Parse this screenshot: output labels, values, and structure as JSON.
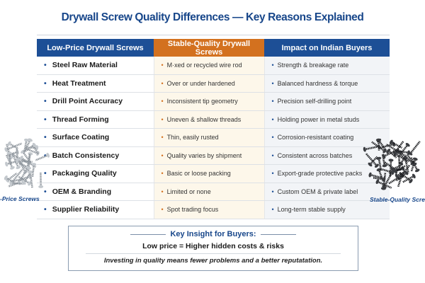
{
  "title": "Drywall Screw Quality Differences — Key Reasons Explained",
  "table": {
    "headers": [
      "Low-Price Drywall Screws",
      "Stable-Quality Drywall Screws",
      "Impact on Indian Buyers"
    ],
    "rows": [
      [
        "Steel Raw Material",
        "M·xed or recycled wire rod",
        "Strength & breakage rate"
      ],
      [
        "Heat Treatment",
        "Over or under hardened",
        "Balanced hardness & torque"
      ],
      [
        "Drill Point Accuracy",
        "Inconsistent tip geometry",
        "Precision self-drilling point"
      ],
      [
        "Thread Forming",
        "Uneven & shallow threads",
        "Holding power in metal studs"
      ],
      [
        "Surface Coating",
        "Thin, easily rusted",
        "Corrosion-resistant coating"
      ],
      [
        "Batch Consistency",
        "Quality varies by shipment",
        "Consistent across batches"
      ],
      [
        "Packaging Quality",
        "Basic or loose packing",
        "Export-grade protective packs"
      ],
      [
        "OEM & Branding",
        "Limited or none",
        "Custom OEM & private label"
      ],
      [
        "Supplier Reliability",
        "Spot trading focus",
        "Long-term stable supply"
      ]
    ]
  },
  "images": {
    "left_caption": "-Price Screws",
    "right_caption": "Stable-Quality Screws"
  },
  "insight": {
    "title": "Key Insight for Buyers:",
    "main": "Low price = Higher hidden costs & risks",
    "sub": "Investing in quality means fewer problems and a better reputatation."
  },
  "colors": {
    "blue": "#1d4f96",
    "orange": "#d3711f",
    "title": "#17468a"
  }
}
